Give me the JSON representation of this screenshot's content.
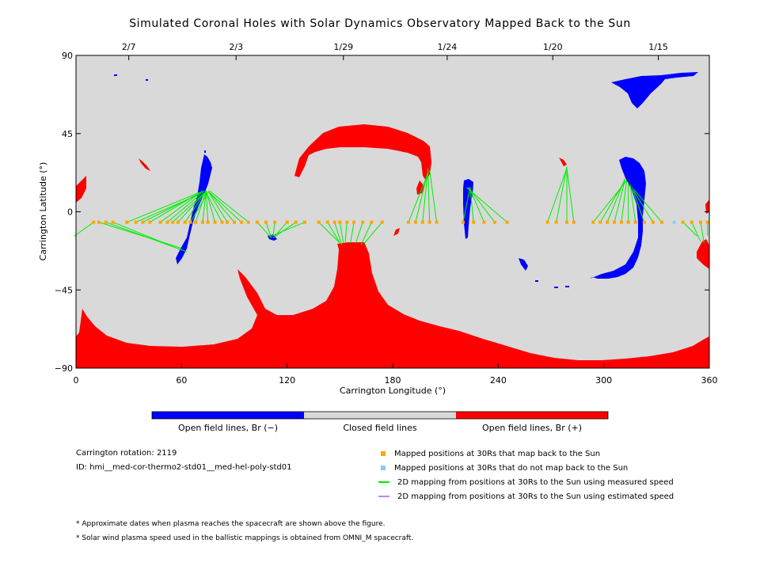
{
  "chart_data": {
    "type": "map",
    "title": "Simulated Coronal Holes with Solar Dynamics Observatory Mapped Back to the Sun",
    "xlabel": "Carrington Longitude (°)",
    "ylabel": "Carrington Latitude (°)",
    "xlim": [
      0,
      360
    ],
    "ylim": [
      -90,
      90
    ],
    "x_ticks": [
      0,
      60,
      120,
      180,
      240,
      300,
      360
    ],
    "y_ticks": [
      90,
      45,
      0,
      -45,
      -90
    ],
    "y_tick_labels": [
      "90",
      "45",
      "0",
      "−45",
      "−90"
    ],
    "top_dates": [
      {
        "label": "2/7",
        "lon": 30
      },
      {
        "label": "2/3",
        "lon": 91
      },
      {
        "label": "1/29",
        "lon": 152
      },
      {
        "label": "1/24",
        "lon": 211
      },
      {
        "label": "1/20",
        "lon": 271
      },
      {
        "label": "1/15",
        "lon": 331
      }
    ],
    "colors": {
      "closed": "#d9d9d9",
      "open_negative": "#0000ff",
      "open_positive": "#ff0000",
      "mapped": "#ffa500",
      "not_mapped": "#87ceeb",
      "measured_line": "#00ee00",
      "estimated_line": "#c080ff"
    },
    "mapped_latitude": -6,
    "mapped_positions": [
      {
        "lon": 10,
        "foot": [
          -1,
          -14
        ]
      },
      {
        "lon": 13,
        "foot": [
          60,
          -21
        ]
      },
      {
        "lon": 17,
        "foot": [
          63,
          -23
        ]
      },
      {
        "lon": 21,
        "foot": [
          60,
          -22
        ]
      },
      {
        "lon": 29,
        "foot": [
          70,
          11
        ]
      },
      {
        "lon": 34,
        "foot": [
          70,
          10
        ]
      },
      {
        "lon": 38,
        "foot": [
          71,
          11
        ]
      },
      {
        "lon": 42,
        "foot": [
          72,
          12
        ]
      },
      {
        "lon": 48,
        "foot": [
          72,
          12
        ]
      },
      {
        "lon": 52,
        "foot": [
          73,
          12
        ]
      },
      {
        "lon": 55,
        "foot": [
          73,
          11
        ]
      },
      {
        "lon": 58,
        "foot": [
          74,
          12
        ]
      },
      {
        "lon": 62,
        "foot": [
          74,
          12
        ]
      },
      {
        "lon": 65,
        "foot": [
          75,
          11
        ]
      },
      {
        "lon": 68,
        "foot": [
          74,
          12
        ]
      },
      {
        "lon": 72,
        "foot": [
          74,
          12
        ]
      },
      {
        "lon": 75,
        "foot": [
          74,
          12
        ]
      },
      {
        "lon": 79,
        "foot": [
          74,
          12
        ]
      },
      {
        "lon": 83,
        "foot": [
          74,
          11
        ]
      },
      {
        "lon": 86,
        "foot": [
          75,
          12
        ]
      },
      {
        "lon": 90,
        "foot": [
          75,
          12
        ]
      },
      {
        "lon": 94,
        "foot": [
          76,
          11
        ]
      },
      {
        "lon": 98,
        "foot": [
          76,
          12
        ]
      },
      {
        "lon": 103,
        "foot": [
          111,
          -15
        ]
      },
      {
        "lon": 108,
        "foot": [
          111,
          -15
        ]
      },
      {
        "lon": 113,
        "foot": [
          112,
          -14
        ]
      },
      {
        "lon": 120,
        "foot": [
          113,
          -14
        ]
      },
      {
        "lon": 125,
        "foot": [
          112,
          -15
        ]
      },
      {
        "lon": 130,
        "foot": [
          111,
          -14
        ]
      },
      {
        "lon": 138,
        "foot": [
          150,
          -18
        ]
      },
      {
        "lon": 143,
        "foot": [
          150,
          -18
        ]
      },
      {
        "lon": 147,
        "foot": [
          151,
          -19
        ]
      },
      {
        "lon": 150,
        "foot": [
          152,
          -18
        ]
      },
      {
        "lon": 154,
        "foot": [
          153,
          -18
        ]
      },
      {
        "lon": 158,
        "foot": [
          156,
          -18
        ]
      },
      {
        "lon": 163,
        "foot": [
          159,
          -18
        ]
      },
      {
        "lon": 168,
        "foot": [
          162,
          -19
        ]
      },
      {
        "lon": 174,
        "foot": [
          164,
          -18
        ]
      },
      {
        "lon": 189,
        "foot": [
          200,
          22
        ]
      },
      {
        "lon": 193,
        "foot": [
          200,
          23
        ]
      },
      {
        "lon": 197,
        "foot": [
          200,
          24
        ]
      },
      {
        "lon": 201,
        "foot": [
          200,
          25
        ]
      },
      {
        "lon": 205,
        "foot": [
          201,
          24
        ]
      },
      {
        "lon": 220,
        "foot": [
          224,
          14
        ]
      },
      {
        "lon": 226,
        "foot": [
          224,
          14
        ]
      },
      {
        "lon": 232,
        "foot": [
          224,
          13
        ]
      },
      {
        "lon": 238,
        "foot": [
          223,
          14
        ]
      },
      {
        "lon": 245,
        "foot": [
          222,
          14
        ]
      },
      {
        "lon": 268,
        "foot": [
          279,
          25
        ]
      },
      {
        "lon": 273,
        "foot": [
          279,
          26
        ]
      },
      {
        "lon": 279,
        "foot": [
          279,
          26
        ]
      },
      {
        "lon": 283,
        "foot": [
          279,
          25
        ]
      },
      {
        "lon": 294,
        "foot": [
          313,
          18
        ]
      },
      {
        "lon": 298,
        "foot": [
          312,
          18
        ]
      },
      {
        "lon": 302,
        "foot": [
          312,
          19
        ]
      },
      {
        "lon": 306,
        "foot": [
          312,
          18
        ]
      },
      {
        "lon": 310,
        "foot": [
          313,
          18
        ]
      },
      {
        "lon": 314,
        "foot": [
          314,
          17
        ]
      },
      {
        "lon": 318,
        "foot": [
          315,
          16
        ]
      },
      {
        "lon": 323,
        "foot": [
          316,
          14
        ]
      },
      {
        "lon": 328,
        "foot": [
          317,
          12
        ]
      },
      {
        "lon": 333,
        "foot": [
          317,
          13
        ]
      },
      {
        "lon": 345,
        "foot": [
          353,
          -14
        ]
      },
      {
        "lon": 350,
        "foot": [
          355,
          -17
        ]
      },
      {
        "lon": 355,
        "foot": [
          357,
          -18
        ]
      },
      {
        "lon": 359,
        "foot": [
          359,
          -14
        ]
      }
    ],
    "not_mapped_positions": [
      {
        "lon": 340
      }
    ]
  },
  "colorbar": {
    "negative_label": "Open field lines, Br (−)",
    "closed_label": "Closed field lines",
    "positive_label": "Open field lines, Br (+)"
  },
  "info": {
    "rotation": "Carrington rotation: 2119",
    "id": "ID: hmi__med-cor-thermo2-std01__med-hel-poly-std01"
  },
  "legend": {
    "mapped": "Mapped positions at 30Rs that map back to the Sun",
    "not_mapped": "Mapped positions at 30Rs that do not map back to the Sun",
    "measured": "2D mapping from positions at 30Rs to the Sun using measured speed",
    "estimated": "2D mapping from positions at 30Rs to the Sun using estimated speed"
  },
  "notes": {
    "note1": "* Approximate dates when plasma reaches the spacecraft are shown above the figure.",
    "note2": "* Solar wind plasma speed used in the ballistic mappings is obtained from OMNI_M spacecraft."
  }
}
